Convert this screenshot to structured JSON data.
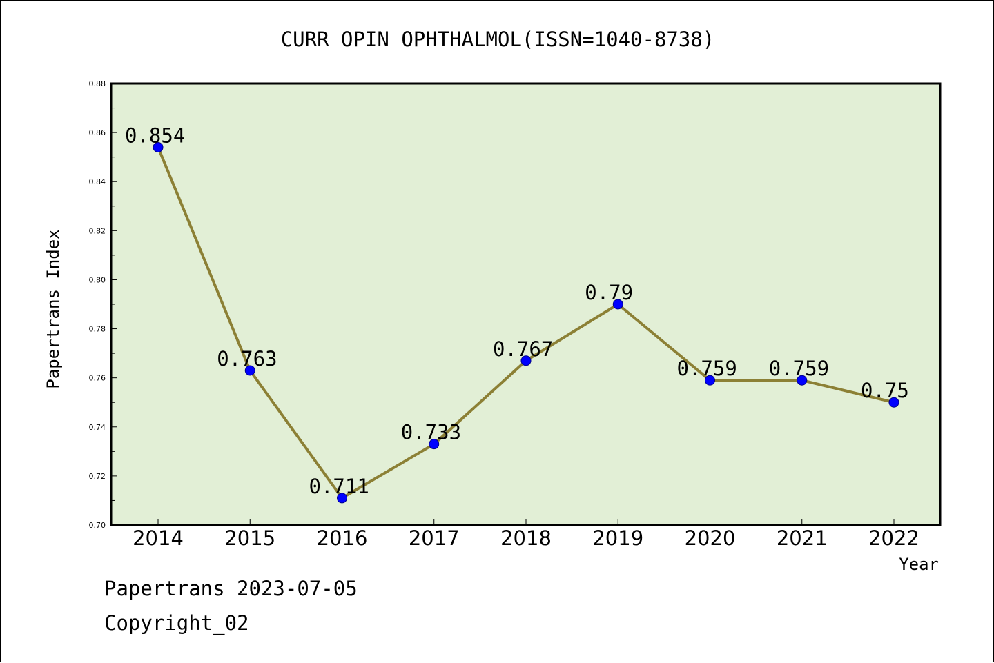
{
  "chart_data": {
    "type": "line",
    "title": "CURR OPIN OPHTHALMOL(ISSN=1040-8738)",
    "xlabel": "Year",
    "ylabel": "Papertrans Index",
    "categories": [
      "2014",
      "2015",
      "2016",
      "2017",
      "2018",
      "2019",
      "2020",
      "2021",
      "2022"
    ],
    "series": [
      {
        "values": [
          0.854,
          0.763,
          0.711,
          0.733,
          0.767,
          0.79,
          0.759,
          0.759,
          0.75
        ]
      }
    ],
    "data_labels": [
      "0.854",
      "0.763",
      "0.711",
      "0.733",
      "0.767",
      "0.79",
      "0.759",
      "0.759",
      "0.75"
    ],
    "ylim": [
      0.7,
      0.88
    ],
    "yticks": [
      "0.70",
      "0.72",
      "0.74",
      "0.76",
      "0.78",
      "0.80",
      "0.82",
      "0.84",
      "0.86",
      "0.88"
    ],
    "grid": false,
    "legend": "none",
    "colors": {
      "plot_background": "#e2efd6",
      "line": "#8c8035",
      "marker": "#0000ff",
      "marker_edge": "#00008b"
    }
  },
  "footer": {
    "date_line": "Papertrans 2023-07-05",
    "copyright": "Copyright_02"
  }
}
